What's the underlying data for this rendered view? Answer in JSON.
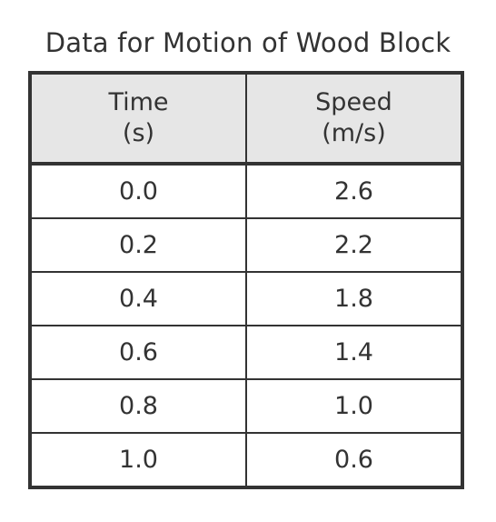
{
  "chart_data": {
    "type": "table",
    "title": "Data for Motion of Wood Block",
    "columns": [
      {
        "name": "Time",
        "unit": "(s)"
      },
      {
        "name": "Speed",
        "unit": "(m/s)"
      }
    ],
    "rows": [
      [
        "0.0",
        "2.6"
      ],
      [
        "0.2",
        "2.2"
      ],
      [
        "0.4",
        "1.8"
      ],
      [
        "0.6",
        "1.4"
      ],
      [
        "0.8",
        "1.0"
      ],
      [
        "1.0",
        "0.6"
      ]
    ]
  },
  "colors": {
    "header_background": "#e6e6e6",
    "border": "#333333",
    "text": "#333333"
  }
}
